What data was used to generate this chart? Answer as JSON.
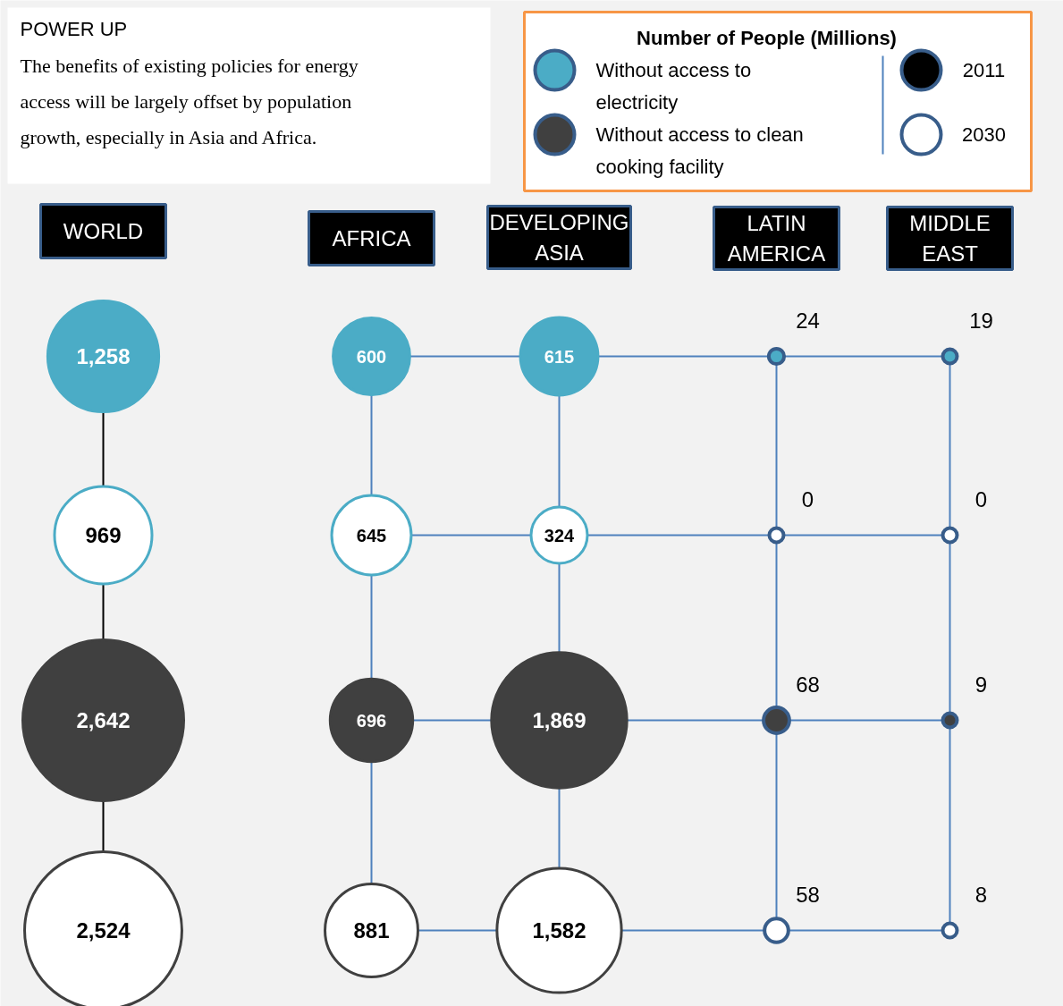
{
  "chart_data": {
    "type": "other",
    "title": "POWER UP",
    "subtitle": "The benefits of existing policies for energy access will be largely offset by population growth, especially in Asia and Africa.",
    "legend_title": "Number of People (Millions)",
    "categories": [
      "WORLD",
      "AFRICA",
      "DEVELOPING ASIA",
      "LATIN AMERICA",
      "MIDDLE EAST"
    ],
    "series": [
      {
        "name": "Without access to electricity",
        "color": "#4bacc6",
        "values": [
          1258,
          600,
          615,
          24,
          19
        ],
        "value_labels": [
          "1,258",
          "600",
          "615",
          "24",
          "19"
        ]
      },
      {
        "color": "#4bacc6",
        "values": [
          969,
          645,
          324,
          0,
          0
        ],
        "value_labels": [
          "969",
          "645",
          "324",
          "0",
          "0"
        ]
      },
      {
        "name": "Without access to clean cooking facility",
        "color": "#404040",
        "values": [
          2642,
          696,
          1869,
          68,
          9
        ],
        "value_labels": [
          "2,642",
          "696",
          "1,869",
          "68",
          "9"
        ]
      },
      {
        "color": "#404040",
        "values": [
          2524,
          881,
          1582,
          58,
          8
        ],
        "value_labels": [
          "2,524",
          "881",
          "1,582",
          "58",
          "8"
        ]
      }
    ],
    "annotations": [
      "2011",
      "2030"
    ],
    "legend": "top right"
  }
}
